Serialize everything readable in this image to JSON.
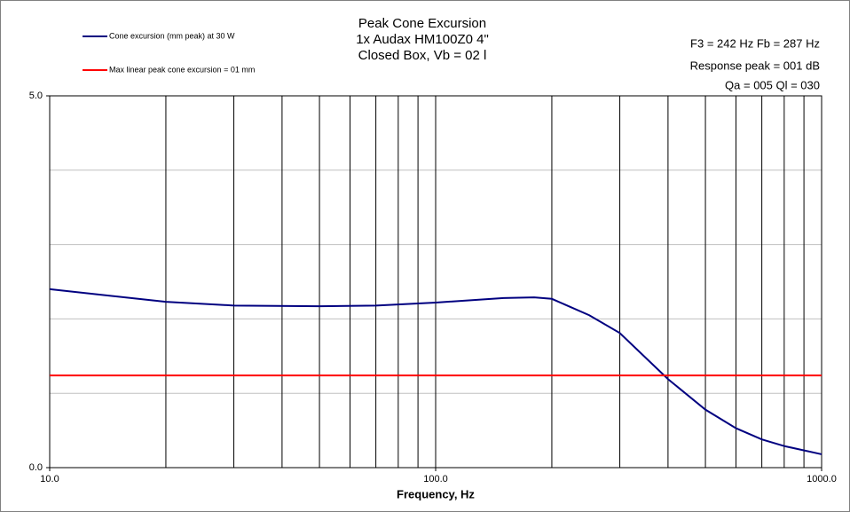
{
  "chart_data": {
    "type": "line",
    "title": [
      "Peak Cone Excursion",
      "1x Audax HM100Z0 4\"",
      "Closed Box, Vb = 02 l"
    ],
    "annotations": [
      "F3 = 242  Hz  Fb = 287  Hz",
      "Response peak = 001  dB",
      "Qa = 005   Ql = 030"
    ],
    "xlabel": "Frequency, Hz",
    "xscale": "log",
    "xlim": [
      10,
      1000
    ],
    "ylim": [
      0,
      5
    ],
    "xticks": [
      {
        "value": 10,
        "label": "10.0"
      },
      {
        "value": 100,
        "label": "100.0"
      },
      {
        "value": 1000,
        "label": "1000.0"
      }
    ],
    "yticks": [
      {
        "value": 0,
        "label": "0.0"
      },
      {
        "value": 5,
        "label": "5.0"
      }
    ],
    "xgrid": [
      20,
      30,
      40,
      50,
      60,
      70,
      80,
      90,
      200,
      300,
      400,
      500,
      600,
      700,
      800,
      900
    ],
    "ygrid": [
      1,
      2,
      3,
      4
    ],
    "legend": "top-left",
    "series": [
      {
        "name": "Cone excursion (mm peak) at 30 W",
        "color": "#000080",
        "x": [
          10,
          20,
          30,
          50,
          70,
          100,
          150,
          180,
          200,
          250,
          300,
          400,
          500,
          600,
          700,
          800,
          1000
        ],
        "values": [
          2.4,
          2.23,
          2.18,
          2.17,
          2.18,
          2.22,
          2.28,
          2.29,
          2.27,
          2.05,
          1.81,
          1.19,
          0.78,
          0.53,
          0.38,
          0.29,
          0.18
        ]
      },
      {
        "name": "Max linear peak cone excursion = 01 mm",
        "color": "#ff0000",
        "x": [
          10,
          1000
        ],
        "values": [
          1.24,
          1.24
        ]
      }
    ]
  }
}
